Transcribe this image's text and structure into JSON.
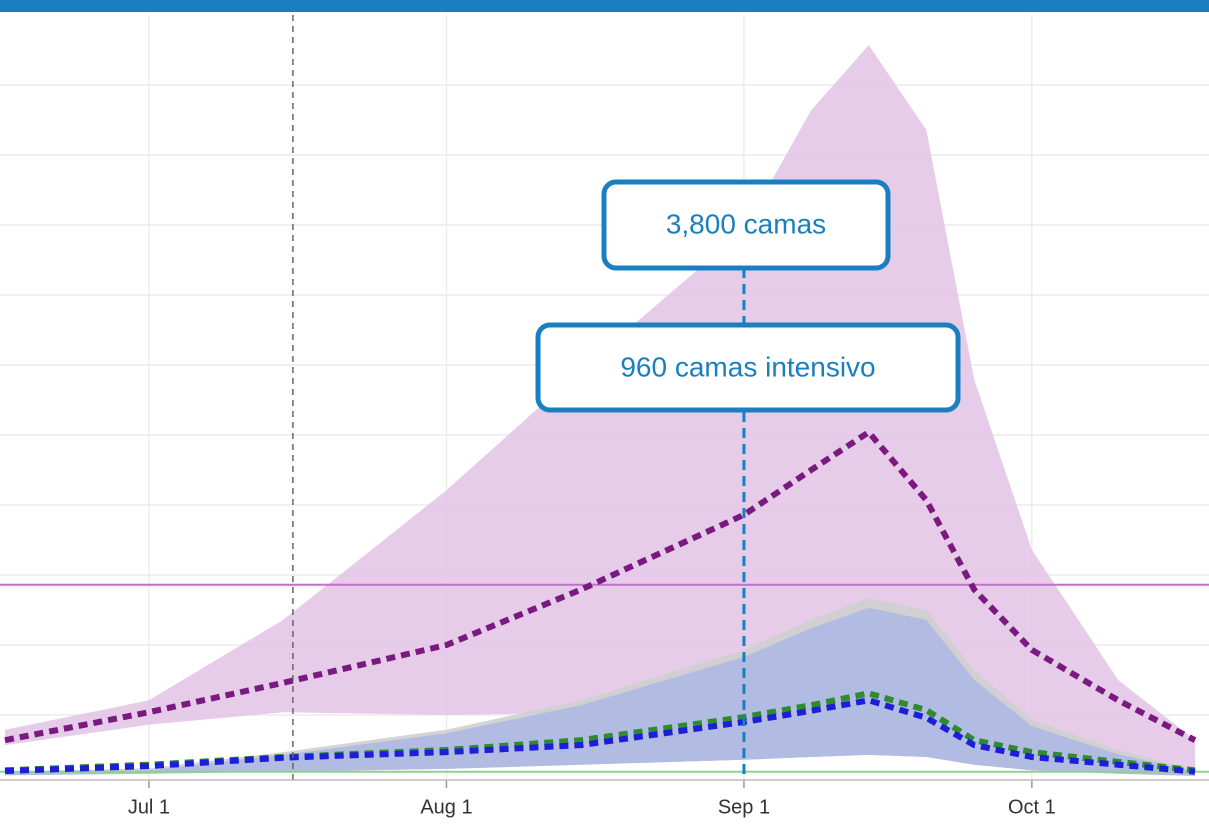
{
  "chart_data": {
    "type": "line",
    "x": [
      "Jun 16",
      "Jul 1",
      "Jul 15",
      "Aug 1",
      "Aug 15",
      "Sep 1",
      "Sep 8",
      "Sep 14",
      "Sep 20",
      "Sep 25",
      "Oct 1",
      "Oct 10",
      "Oct 18"
    ],
    "xlim": [
      "Jun 16",
      "Oct 18"
    ],
    "xticks": [
      "Jul 1",
      "Aug 1",
      "Sep 1",
      "Oct 1"
    ],
    "ylim": [
      0,
      110
    ],
    "yticks": [
      10,
      20,
      30,
      40,
      50,
      60,
      70,
      80,
      90,
      100
    ],
    "grid": true,
    "bands": [
      {
        "color": "#e3c6e6",
        "upper": [
          7.9,
          12.1,
          23.6,
          42.1,
          59.3,
          79.3,
          96.4,
          105.7,
          93.6,
          57.9,
          33.6,
          15,
          6.4
        ],
        "lower": [
          5.7,
          8.6,
          10.4,
          10,
          10.3,
          11.3,
          13.6,
          15,
          12.1,
          6.4,
          4.3,
          2.9,
          1.9
        ]
      },
      {
        "color": "#cfcfcf",
        "upper": [
          1.9,
          2.4,
          4.7,
          7.9,
          12.1,
          19.3,
          23.6,
          26.7,
          25,
          16.4,
          9.3,
          5,
          2.1
        ],
        "lower": [
          1.4,
          1.6,
          1.9,
          2.3,
          2.9,
          3.6,
          4,
          4.3,
          4,
          2.9,
          2.1,
          1.6,
          1.3
        ]
      },
      {
        "color": "#aeb9e3",
        "upper": [
          1.7,
          2.1,
          4.3,
          7.4,
          11.4,
          18.3,
          22.4,
          25.3,
          23.6,
          15,
          8.4,
          4.4,
          1.9
        ],
        "lower": [
          1.4,
          1.6,
          1.9,
          2.3,
          2.9,
          3.6,
          4,
          4.3,
          4,
          2.9,
          2.1,
          1.6,
          1.3
        ]
      }
    ],
    "series": [
      {
        "color": "#7a1a80",
        "values": [
          6.4,
          10.4,
          14.6,
          20,
          27.9,
          38.6,
          45,
          50.4,
          40.7,
          27.9,
          19.3,
          12.1,
          6.4
        ]
      },
      {
        "color": "#2e8b2e",
        "values": [
          2.1,
          2.9,
          4,
          5,
          6.4,
          9.7,
          11.4,
          13.1,
          10.7,
          6.4,
          4.7,
          3.3,
          2.1
        ]
      },
      {
        "color": "#1c1ed8",
        "values": [
          2,
          2.7,
          3.9,
          4.7,
          5.7,
          9,
          10.6,
          12.1,
          9.6,
          5.7,
          4,
          2.9,
          1.9
        ]
      }
    ],
    "hlines": [
      {
        "value": 28.6,
        "color": "#c070c8"
      },
      {
        "value": 1.9,
        "color": "#8fd08f"
      }
    ],
    "vlines": [
      {
        "x": "Jul 16",
        "color": "#666666"
      },
      {
        "x": "Sep 1",
        "color": "#1a7fc1"
      }
    ],
    "annotations": [
      "3,800 camas",
      "960 camas intensivo"
    ]
  }
}
